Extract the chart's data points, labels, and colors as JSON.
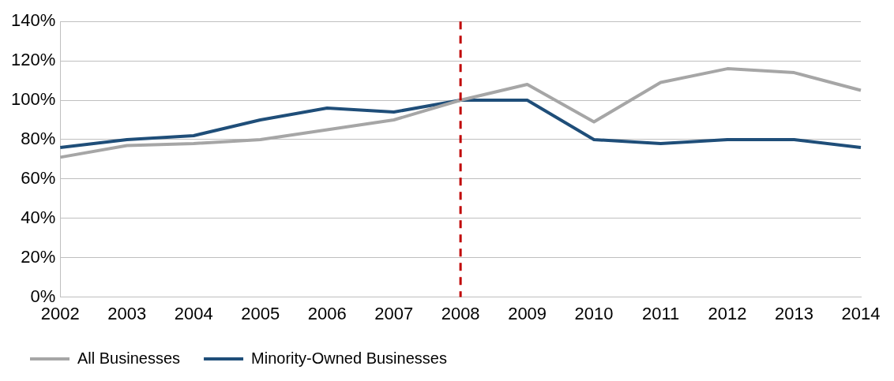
{
  "chart_data": {
    "type": "line",
    "categories": [
      "2002",
      "2003",
      "2004",
      "2005",
      "2006",
      "2007",
      "2008",
      "2009",
      "2010",
      "2011",
      "2012",
      "2013",
      "2014"
    ],
    "series": [
      {
        "name": "All Businesses",
        "color": "#a6a6a6",
        "values": [
          71,
          77,
          78,
          80,
          85,
          90,
          100,
          108,
          89,
          109,
          116,
          114,
          105
        ]
      },
      {
        "name": "Minority-Owned Businesses",
        "color": "#1f4e79",
        "values": [
          76,
          80,
          82,
          90,
          96,
          94,
          100,
          100,
          80,
          78,
          80,
          80,
          76
        ]
      }
    ],
    "ylim": [
      0,
      140
    ],
    "yticks": [
      {
        "value": 0,
        "label": "0%"
      },
      {
        "value": 20,
        "label": "20%"
      },
      {
        "value": 40,
        "label": "40%"
      },
      {
        "value": 60,
        "label": "60%"
      },
      {
        "value": 80,
        "label": "80%"
      },
      {
        "value": 100,
        "label": "100%"
      },
      {
        "value": 120,
        "label": "120%"
      },
      {
        "value": 140,
        "label": "140%"
      }
    ],
    "grid": "y",
    "legend": "bottom left",
    "marker": "none",
    "line_style": "solid",
    "ref_lines": [
      {
        "axis": "x",
        "value": "2008",
        "color": "#c00000",
        "line_style": "dashed"
      }
    ]
  }
}
